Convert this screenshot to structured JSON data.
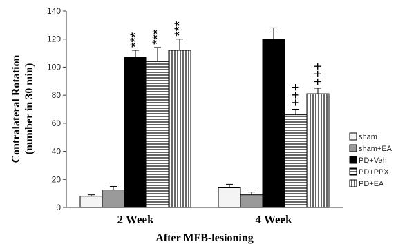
{
  "chart_data": {
    "type": "bar",
    "categories": [
      "2 Week",
      "4 Week"
    ],
    "series": [
      {
        "name": "sham",
        "pattern": "white",
        "values": [
          8,
          14
        ],
        "errors": [
          1,
          2.5
        ]
      },
      {
        "name": "sham+EA",
        "pattern": "gray",
        "values": [
          12.5,
          9
        ],
        "errors": [
          2.5,
          2
        ]
      },
      {
        "name": "PD+Veh",
        "pattern": "black",
        "values": [
          107,
          120
        ],
        "errors": [
          5,
          8
        ]
      },
      {
        "name": "PD+PPX",
        "pattern": "hlines",
        "values": [
          104,
          66
        ],
        "errors": [
          10,
          4
        ]
      },
      {
        "name": "PD+EA",
        "pattern": "vlines",
        "values": [
          112,
          81
        ],
        "errors": [
          8,
          4
        ]
      }
    ],
    "annotations": [
      {
        "category": 0,
        "series": 2,
        "text": "***"
      },
      {
        "category": 0,
        "series": 3,
        "text": "***"
      },
      {
        "category": 0,
        "series": 4,
        "text": "***"
      },
      {
        "category": 1,
        "series": 3,
        "text": "+++"
      },
      {
        "category": 1,
        "series": 4,
        "text": "+++"
      }
    ],
    "xlabel": "After MFB-lesioning",
    "ylabel_line1": "Contralateral Rotation",
    "ylabel_line2": "(number in 30 min)",
    "ylim": [
      0,
      140
    ],
    "yticks": [
      0,
      20,
      40,
      60,
      80,
      100,
      120,
      140
    ],
    "grid": false,
    "legend_position": "right"
  }
}
